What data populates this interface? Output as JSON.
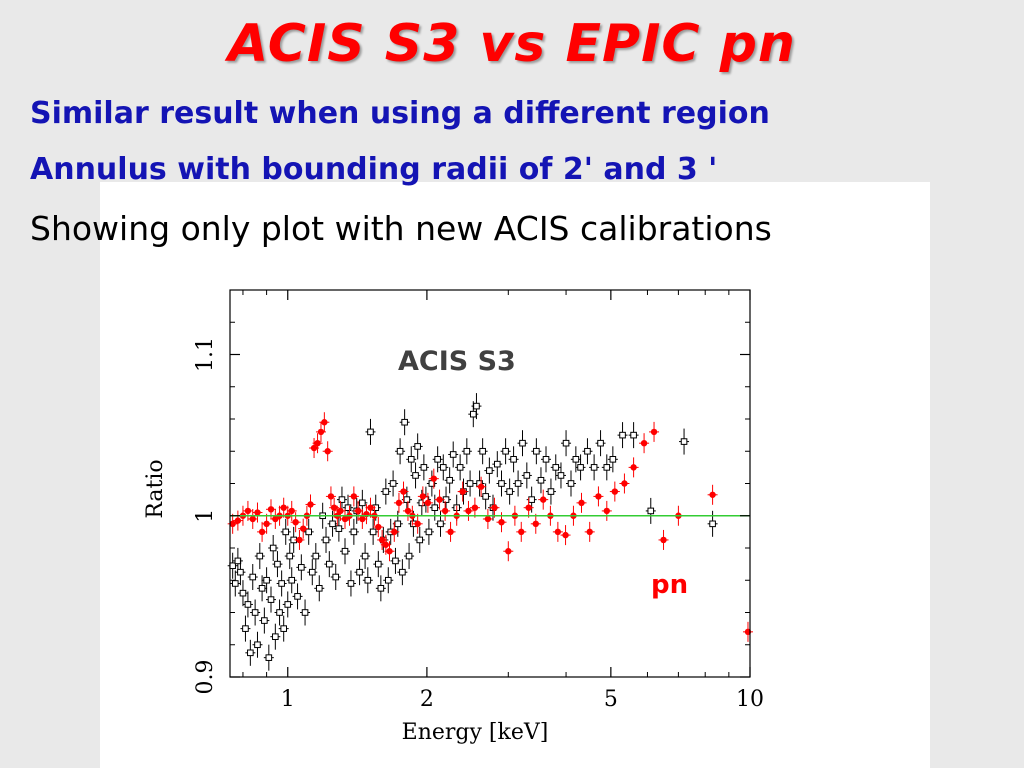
{
  "slide": {
    "title": "ACIS S3 vs EPIC pn",
    "line1": "Similar result when using  a different region",
    "line2": "Annulus with bounding radii of 2' and 3 '",
    "line3": "Showing only plot with new ACIS calibrations"
  },
  "colors": {
    "title": "#ff0000",
    "subtitle": "#1414b4",
    "acis": "#000000",
    "pn": "#ff0000",
    "unity_line": "#33cc33"
  },
  "chart_data": {
    "type": "scatter",
    "xlabel": "Energy [keV]",
    "ylabel": "Ratio",
    "xscale": "log",
    "xlim": [
      0.75,
      10
    ],
    "ylim": [
      0.9,
      1.14
    ],
    "xticks": [
      1,
      2,
      5,
      10
    ],
    "xtick_labels": [
      "1",
      "2",
      "5",
      "10"
    ],
    "yticks": [
      0.9,
      1,
      1.1
    ],
    "ytick_labels": [
      "0.9",
      "1",
      "1.1"
    ],
    "reference_line": 1.0,
    "annotations": [
      {
        "text": "ACIS S3",
        "color": "#404040"
      },
      {
        "text": "pn",
        "color": "#ff0000"
      }
    ],
    "series": [
      {
        "name": "ACIS S3",
        "marker": "open-square",
        "color": "#000000",
        "points": [
          [
            0.76,
            0.969
          ],
          [
            0.77,
            0.958
          ],
          [
            0.78,
            0.972
          ],
          [
            0.79,
            0.965
          ],
          [
            0.8,
            0.952
          ],
          [
            0.81,
            0.93
          ],
          [
            0.82,
            0.945
          ],
          [
            0.83,
            0.915
          ],
          [
            0.84,
            0.962
          ],
          [
            0.85,
            0.94
          ],
          [
            0.86,
            0.92
          ],
          [
            0.87,
            0.975
          ],
          [
            0.88,
            0.955
          ],
          [
            0.89,
            0.935
          ],
          [
            0.9,
            0.96
          ],
          [
            0.91,
            0.912
          ],
          [
            0.92,
            0.948
          ],
          [
            0.93,
            0.98
          ],
          [
            0.94,
            0.925
          ],
          [
            0.95,
            0.97
          ],
          [
            0.96,
            0.94
          ],
          [
            0.97,
            0.958
          ],
          [
            0.98,
            0.93
          ],
          [
            0.99,
            0.99
          ],
          [
            1.0,
            0.945
          ],
          [
            1.01,
            0.975
          ],
          [
            1.02,
            0.96
          ],
          [
            1.03,
            0.985
          ],
          [
            1.05,
            0.95
          ],
          [
            1.07,
            0.968
          ],
          [
            1.09,
            0.94
          ],
          [
            1.11,
            0.99
          ],
          [
            1.13,
            0.965
          ],
          [
            1.15,
            0.975
          ],
          [
            1.17,
            0.955
          ],
          [
            1.19,
            1.0
          ],
          [
            1.21,
            0.985
          ],
          [
            1.23,
            0.97
          ],
          [
            1.25,
            0.995
          ],
          [
            1.27,
            0.962
          ],
          [
            1.29,
            0.992
          ],
          [
            1.31,
            1.01
          ],
          [
            1.33,
            0.978
          ],
          [
            1.35,
            1.005
          ],
          [
            1.37,
            0.958
          ],
          [
            1.39,
            0.99
          ],
          [
            1.41,
            1.003
          ],
          [
            1.43,
            0.965
          ],
          [
            1.45,
            1.008
          ],
          [
            1.47,
            0.975
          ],
          [
            1.49,
            0.96
          ],
          [
            1.51,
            1.052
          ],
          [
            1.53,
            0.99
          ],
          [
            1.55,
            1.005
          ],
          [
            1.57,
            0.97
          ],
          [
            1.59,
            0.955
          ],
          [
            1.61,
            0.985
          ],
          [
            1.63,
            1.015
          ],
          [
            1.65,
            0.96
          ],
          [
            1.67,
            0.99
          ],
          [
            1.69,
            1.02
          ],
          [
            1.71,
            0.972
          ],
          [
            1.73,
            0.995
          ],
          [
            1.75,
            1.04
          ],
          [
            1.77,
            0.965
          ],
          [
            1.79,
            1.058
          ],
          [
            1.81,
            1.01
          ],
          [
            1.83,
            0.975
          ],
          [
            1.85,
            1.035
          ],
          [
            1.87,
            0.995
          ],
          [
            1.89,
            1.025
          ],
          [
            1.91,
            1.043
          ],
          [
            1.93,
            0.985
          ],
          [
            1.95,
            1.008
          ],
          [
            1.97,
            1.03
          ],
          [
            1.99,
            1.01
          ],
          [
            2.02,
            0.99
          ],
          [
            2.05,
            1.02
          ],
          [
            2.08,
            1.005
          ],
          [
            2.11,
            1.035
          ],
          [
            2.14,
            0.995
          ],
          [
            2.17,
            1.03
          ],
          [
            2.2,
            1.01
          ],
          [
            2.24,
            1.022
          ],
          [
            2.28,
            1.038
          ],
          [
            2.32,
            1.005
          ],
          [
            2.36,
            1.03
          ],
          [
            2.4,
            1.015
          ],
          [
            2.44,
            1.04
          ],
          [
            2.48,
            1.02
          ],
          [
            2.52,
            1.063
          ],
          [
            2.56,
            1.068
          ],
          [
            2.6,
            1.02
          ],
          [
            2.64,
            1.04
          ],
          [
            2.68,
            1.012
          ],
          [
            2.73,
            1.028
          ],
          [
            2.78,
            1.005
          ],
          [
            2.84,
            1.032
          ],
          [
            2.9,
            1.02
          ],
          [
            2.96,
            1.04
          ],
          [
            3.02,
            1.015
          ],
          [
            3.08,
            1.035
          ],
          [
            3.15,
            1.02
          ],
          [
            3.22,
            1.045
          ],
          [
            3.29,
            1.025
          ],
          [
            3.37,
            1.01
          ],
          [
            3.45,
            1.04
          ],
          [
            3.53,
            1.022
          ],
          [
            3.62,
            1.035
          ],
          [
            3.71,
            1.015
          ],
          [
            3.8,
            1.03
          ],
          [
            3.9,
            1.025
          ],
          [
            4.0,
            1.045
          ],
          [
            4.1,
            1.02
          ],
          [
            4.2,
            1.035
          ],
          [
            4.3,
            1.03
          ],
          [
            4.45,
            1.04
          ],
          [
            4.6,
            1.03
          ],
          [
            4.75,
            1.045
          ],
          [
            4.9,
            1.03
          ],
          [
            5.05,
            1.035
          ],
          [
            5.3,
            1.05
          ],
          [
            5.6,
            1.05
          ],
          [
            6.1,
            1.003
          ],
          [
            7.2,
            1.046
          ],
          [
            8.3,
            0.995
          ]
        ]
      },
      {
        "name": "pn",
        "marker": "filled-circle",
        "color": "#ff0000",
        "points": [
          [
            0.76,
            0.995
          ],
          [
            0.78,
            0.997
          ],
          [
            0.8,
            1.0
          ],
          [
            0.82,
            1.003
          ],
          [
            0.84,
            0.998
          ],
          [
            0.86,
            1.002
          ],
          [
            0.88,
            0.99
          ],
          [
            0.9,
            0.995
          ],
          [
            0.92,
            1.004
          ],
          [
            0.94,
            0.998
          ],
          [
            0.96,
            1.0
          ],
          [
            0.98,
            1.005
          ],
          [
            1.0,
            1.0
          ],
          [
            1.02,
            1.003
          ],
          [
            1.04,
            0.996
          ],
          [
            1.06,
            0.985
          ],
          [
            1.08,
            0.992
          ],
          [
            1.1,
            1.0
          ],
          [
            1.12,
            1.007
          ],
          [
            1.14,
            1.042
          ],
          [
            1.16,
            1.045
          ],
          [
            1.18,
            1.052
          ],
          [
            1.2,
            1.058
          ],
          [
            1.22,
            1.04
          ],
          [
            1.24,
            1.012
          ],
          [
            1.26,
            1.005
          ],
          [
            1.28,
            1.0
          ],
          [
            1.3,
            1.003
          ],
          [
            1.33,
            0.998
          ],
          [
            1.36,
            1.0
          ],
          [
            1.39,
            1.012
          ],
          [
            1.42,
            1.003
          ],
          [
            1.45,
            0.998
          ],
          [
            1.48,
            1.001
          ],
          [
            1.51,
            1.005
          ],
          [
            1.54,
            1.0
          ],
          [
            1.57,
            0.993
          ],
          [
            1.6,
            0.985
          ],
          [
            1.63,
            0.982
          ],
          [
            1.66,
            0.978
          ],
          [
            1.7,
            0.99
          ],
          [
            1.74,
            1.008
          ],
          [
            1.78,
            1.015
          ],
          [
            1.82,
            1.003
          ],
          [
            1.86,
            1.0
          ],
          [
            1.91,
            0.995
          ],
          [
            1.96,
            1.012
          ],
          [
            2.01,
            1.008
          ],
          [
            2.07,
            1.023
          ],
          [
            2.13,
            1.01
          ],
          [
            2.19,
            1.003
          ],
          [
            2.25,
            0.99
          ],
          [
            2.32,
            1.0
          ],
          [
            2.39,
            1.015
          ],
          [
            2.46,
            1.003
          ],
          [
            2.54,
            1.005
          ],
          [
            2.62,
            1.018
          ],
          [
            2.71,
            0.998
          ],
          [
            2.8,
            1.005
          ],
          [
            2.9,
            0.996
          ],
          [
            3.0,
            0.978
          ],
          [
            3.1,
            1.0
          ],
          [
            3.2,
            0.99
          ],
          [
            3.32,
            1.005
          ],
          [
            3.44,
            0.995
          ],
          [
            3.57,
            1.01
          ],
          [
            3.7,
            1.0
          ],
          [
            3.84,
            0.99
          ],
          [
            3.99,
            0.988
          ],
          [
            4.15,
            1.0
          ],
          [
            4.32,
            1.008
          ],
          [
            4.5,
            0.99
          ],
          [
            4.7,
            1.012
          ],
          [
            4.9,
            1.003
          ],
          [
            5.1,
            1.015
          ],
          [
            5.35,
            1.02
          ],
          [
            5.6,
            1.03
          ],
          [
            5.9,
            1.045
          ],
          [
            6.2,
            1.052
          ],
          [
            6.5,
            0.985
          ],
          [
            7.0,
            1.0
          ],
          [
            8.3,
            1.013
          ],
          [
            9.9,
            0.928
          ]
        ]
      }
    ]
  }
}
